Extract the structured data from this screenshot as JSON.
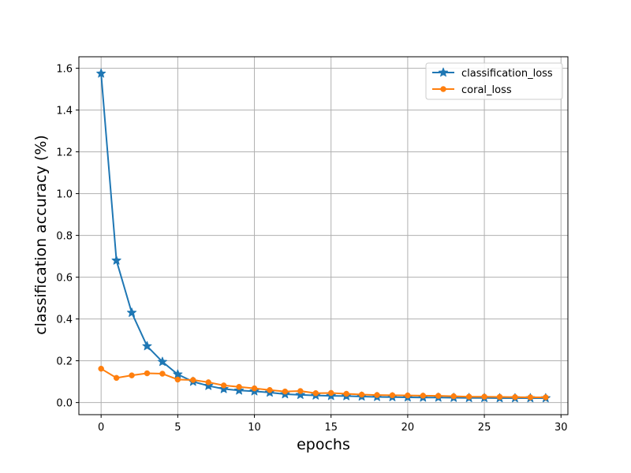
{
  "chart_data": {
    "type": "line",
    "title": "",
    "xlabel": "epochs",
    "ylabel": "classification accuracy (%)",
    "xlim": [
      -1.45,
      30.45
    ],
    "ylim": [
      -0.058,
      1.655
    ],
    "xticks": [
      0,
      5,
      10,
      15,
      20,
      25,
      30
    ],
    "yticks": [
      0.0,
      0.2,
      0.4,
      0.6,
      0.8,
      1.0,
      1.2,
      1.4,
      1.6
    ],
    "xtick_labels": [
      "0",
      "5",
      "10",
      "15",
      "20",
      "25",
      "30"
    ],
    "ytick_labels": [
      "0.0",
      "0.2",
      "0.4",
      "0.6",
      "0.8",
      "1.0",
      "1.2",
      "1.4",
      "1.6"
    ],
    "grid": true,
    "legend_position": "top-right",
    "x": [
      0,
      1,
      2,
      3,
      4,
      5,
      6,
      7,
      8,
      9,
      10,
      11,
      12,
      13,
      14,
      15,
      16,
      17,
      18,
      19,
      20,
      21,
      22,
      23,
      24,
      25,
      26,
      27,
      28,
      29
    ],
    "series": [
      {
        "name": "classification_loss",
        "color": "#1f77b4",
        "marker": "star",
        "values": [
          1.575,
          0.68,
          0.43,
          0.27,
          0.195,
          0.135,
          0.1,
          0.08,
          0.065,
          0.058,
          0.054,
          0.048,
          0.04,
          0.037,
          0.034,
          0.032,
          0.031,
          0.029,
          0.027,
          0.026,
          0.025,
          0.024,
          0.024,
          0.023,
          0.022,
          0.022,
          0.021,
          0.021,
          0.021,
          0.021
        ]
      },
      {
        "name": "coral_loss",
        "color": "#ff7f0e",
        "marker": "circle",
        "values": [
          0.162,
          0.118,
          0.13,
          0.14,
          0.138,
          0.11,
          0.108,
          0.097,
          0.082,
          0.075,
          0.068,
          0.06,
          0.053,
          0.055,
          0.045,
          0.046,
          0.042,
          0.038,
          0.036,
          0.035,
          0.034,
          0.033,
          0.032,
          0.03,
          0.028,
          0.028,
          0.027,
          0.026,
          0.025,
          0.025
        ]
      }
    ]
  }
}
